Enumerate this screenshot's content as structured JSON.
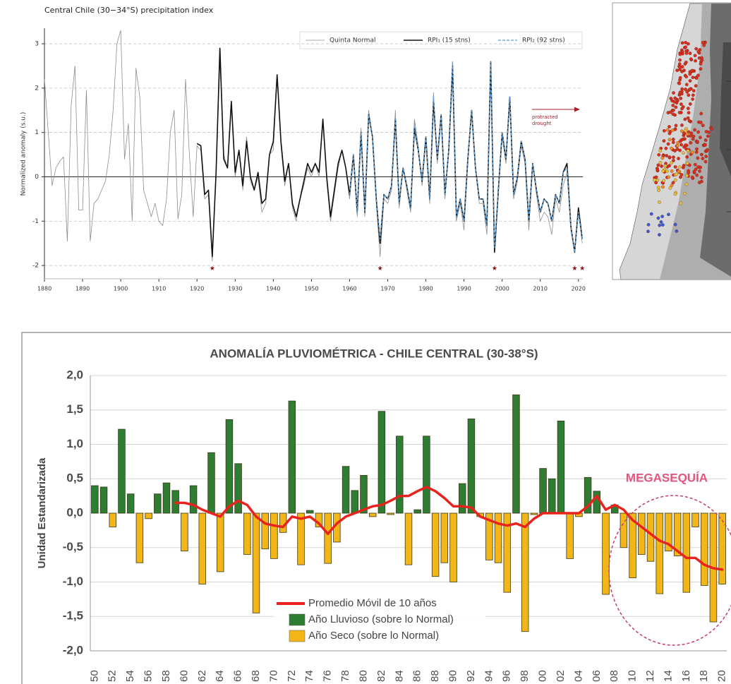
{
  "chart_data": [
    {
      "type": "line",
      "title": "Central Chile (30−34°S) precipitation index",
      "y_label": "Normalized anomaly (s.u.)",
      "x": [
        1880,
        1881,
        1882,
        1883,
        1884,
        1885,
        1886,
        1887,
        1888,
        1889,
        1890,
        1891,
        1892,
        1893,
        1894,
        1895,
        1896,
        1897,
        1898,
        1899,
        1900,
        1901,
        1902,
        1903,
        1904,
        1905,
        1906,
        1907,
        1908,
        1909,
        1910,
        1911,
        1912,
        1913,
        1914,
        1915,
        1916,
        1917,
        1918,
        1919,
        1920,
        1921,
        1922,
        1923,
        1924,
        1925,
        1926,
        1927,
        1928,
        1929,
        1930,
        1931,
        1932,
        1933,
        1934,
        1935,
        1936,
        1937,
        1938,
        1939,
        1940,
        1941,
        1942,
        1943,
        1944,
        1945,
        1946,
        1947,
        1948,
        1949,
        1950,
        1951,
        1952,
        1953,
        1954,
        1955,
        1956,
        1957,
        1958,
        1959,
        1960,
        1961,
        1962,
        1963,
        1964,
        1965,
        1966,
        1967,
        1968,
        1969,
        1970,
        1971,
        1972,
        1973,
        1974,
        1975,
        1976,
        1977,
        1978,
        1979,
        1980,
        1981,
        1982,
        1983,
        1984,
        1985,
        1986,
        1987,
        1988,
        1989,
        1990,
        1991,
        1992,
        1993,
        1994,
        1995,
        1996,
        1997,
        1998,
        1999,
        2000,
        2001,
        2002,
        2003,
        2004,
        2005,
        2006,
        2007,
        2008,
        2009,
        2010,
        2011,
        2012,
        2013,
        2014,
        2015,
        2016,
        2017,
        2018,
        2019,
        2020,
        2021
      ],
      "series": [
        {
          "name": "Quinta Normal",
          "color": "#8c8c8c",
          "linestyle": "solid",
          "values": [
            2.2,
            1.0,
            -0.2,
            0.2,
            0.35,
            0.45,
            -1.45,
            1.6,
            2.5,
            -0.75,
            -0.75,
            1.95,
            -1.45,
            -0.6,
            -0.5,
            -0.3,
            -0.1,
            0.5,
            1.5,
            3.0,
            3.3,
            0.4,
            1.2,
            -1.0,
            2.45,
            1.8,
            -0.3,
            -0.6,
            -0.9,
            -0.6,
            -1.0,
            -1.1,
            -0.5,
            1.0,
            1.5,
            -0.95,
            -0.4,
            2.2,
            0.5,
            -0.9,
            0.7,
            0.6,
            -0.5,
            -0.4,
            -1.9,
            0.2,
            2.6,
            0.5,
            0.2,
            1.7,
            0.0,
            0.6,
            -0.3,
            0.9,
            -0.1,
            -0.3,
            0.0,
            -0.8,
            -0.6,
            0.5,
            0.6,
            2.3,
            0.7,
            -0.2,
            0.3,
            -0.7,
            -1.0,
            -0.5,
            -0.2,
            0.2,
            0.0,
            0.3,
            0.0,
            1.3,
            -0.1,
            -1.0,
            -0.4,
            0.2,
            0.6,
            0.2,
            -0.5,
            0.4,
            -0.9,
            1.1,
            -0.9,
            1.5,
            0.9,
            -0.6,
            -1.8,
            -0.5,
            -0.6,
            -0.3,
            1.5,
            -0.7,
            0.2,
            -0.3,
            -0.8,
            1.3,
            0.7,
            -0.2,
            0.8,
            -0.6,
            1.9,
            0.3,
            1.4,
            -0.5,
            0.7,
            2.6,
            -1.0,
            -0.6,
            -1.2,
            0.3,
            1.5,
            0.2,
            -0.6,
            -0.6,
            -1.3,
            2.5,
            -1.6,
            -0.4,
            0.9,
            0.3,
            1.7,
            -0.5,
            -0.1,
            0.7,
            0.3,
            -1.2,
            0.3,
            -0.4,
            -1.0,
            -0.8,
            -0.9,
            -1.3,
            -0.5,
            -0.8,
            -0.2,
            0.1,
            -1.2,
            -1.7,
            -0.8,
            -1.5
          ]
        },
        {
          "name": "RPI₁ (15 stns)",
          "color": "#111111",
          "linestyle": "solid",
          "values": [
            null,
            null,
            null,
            null,
            null,
            null,
            null,
            null,
            null,
            null,
            null,
            null,
            null,
            null,
            null,
            null,
            null,
            null,
            null,
            null,
            null,
            null,
            null,
            null,
            null,
            null,
            null,
            null,
            null,
            null,
            null,
            null,
            null,
            null,
            null,
            null,
            null,
            null,
            null,
            null,
            0.75,
            0.7,
            -0.4,
            -0.3,
            -1.8,
            0.1,
            2.9,
            0.4,
            0.2,
            1.7,
            0.1,
            0.6,
            -0.2,
            0.8,
            0.0,
            -0.3,
            0.1,
            -0.6,
            -0.5,
            0.5,
            0.8,
            2.3,
            0.8,
            -0.1,
            0.3,
            -0.6,
            -0.9,
            -0.5,
            -0.1,
            0.3,
            0.1,
            0.3,
            0.1,
            1.3,
            0.0,
            -0.9,
            -0.3,
            0.3,
            0.6,
            0.2,
            -0.4,
            0.5,
            -0.8,
            1.0,
            -0.8,
            1.4,
            0.9,
            -0.5,
            -1.5,
            -0.4,
            -0.5,
            -0.2,
            1.3,
            -0.6,
            0.2,
            -0.2,
            -0.7,
            1.1,
            0.6,
            -0.1,
            0.9,
            -0.5,
            1.7,
            0.4,
            1.4,
            -0.4,
            0.6,
            2.5,
            -0.9,
            -0.5,
            -1.0,
            0.4,
            1.5,
            0.2,
            -0.5,
            -0.5,
            -1.1,
            2.6,
            -1.7,
            -0.3,
            1.0,
            0.4,
            1.8,
            -0.4,
            0.0,
            0.8,
            0.4,
            -1.0,
            0.3,
            -0.3,
            -0.8,
            -0.5,
            -0.6,
            -1.0,
            -0.4,
            -0.6,
            0.1,
            0.3,
            -1.1,
            -1.7,
            -0.7,
            -1.4
          ]
        },
        {
          "name": "RPI₂ (92 stns)",
          "color": "#5b9bd5",
          "linestyle": "dashed",
          "values": [
            null,
            null,
            null,
            null,
            null,
            null,
            null,
            null,
            null,
            null,
            null,
            null,
            null,
            null,
            null,
            null,
            null,
            null,
            null,
            null,
            null,
            null,
            null,
            null,
            null,
            null,
            null,
            null,
            null,
            null,
            null,
            null,
            null,
            null,
            null,
            null,
            null,
            null,
            null,
            null,
            null,
            null,
            null,
            null,
            null,
            null,
            null,
            null,
            null,
            null,
            null,
            null,
            null,
            null,
            null,
            null,
            null,
            null,
            null,
            null,
            null,
            null,
            null,
            null,
            null,
            null,
            null,
            null,
            null,
            null,
            null,
            null,
            null,
            null,
            null,
            null,
            null,
            null,
            null,
            null,
            -0.4,
            0.5,
            -0.8,
            1.0,
            -0.8,
            1.4,
            0.9,
            -0.5,
            -1.4,
            -0.4,
            -0.5,
            -0.2,
            1.3,
            -0.6,
            0.2,
            -0.2,
            -0.7,
            1.2,
            0.6,
            -0.1,
            0.9,
            -0.5,
            1.8,
            0.4,
            1.4,
            -0.4,
            0.6,
            2.6,
            -0.9,
            -0.5,
            -1.0,
            0.4,
            1.5,
            0.2,
            -0.5,
            -0.5,
            -1.1,
            2.6,
            -1.6,
            -0.3,
            1.0,
            0.4,
            1.8,
            -0.4,
            0.0,
            0.8,
            0.4,
            -1.0,
            0.3,
            -0.3,
            -0.8,
            -0.5,
            -0.6,
            -1.0,
            -0.4,
            -0.6,
            0.1,
            0.2,
            -1.1,
            -1.7,
            -0.8,
            -1.4
          ]
        }
      ],
      "xlim": [
        1880,
        2023
      ],
      "xticks": [
        1880,
        1890,
        1900,
        1910,
        1920,
        1930,
        1940,
        1950,
        1960,
        1970,
        1980,
        1990,
        2000,
        2010,
        2020
      ],
      "ylim": [
        -2.3,
        3.35
      ],
      "yticks": [
        -2,
        -1,
        0,
        1,
        2,
        3
      ],
      "grid": true,
      "legend": "upper right",
      "drought_years": [
        1924,
        1968,
        1998,
        2019,
        2021
      ],
      "marker_color": "#8b1a1a",
      "annotation": [
        "protracted",
        "drought"
      ],
      "annotation_color": "#a3202b"
    },
    {
      "type": "bar",
      "title": "ANOMALÍA PLUVIOMÉTRICA - CHILE CENTRAL (30-38°S)",
      "y_label": "Unidad  Estandarizada",
      "categories": [
        "50",
        null,
        "52",
        null,
        "54",
        null,
        "56",
        null,
        "58",
        null,
        "60",
        null,
        "62",
        null,
        "64",
        null,
        "66",
        null,
        "68",
        null,
        "70",
        null,
        "72",
        null,
        "74",
        null,
        "76",
        null,
        "78",
        null,
        "80",
        null,
        "82",
        null,
        "84",
        null,
        "86",
        null,
        "88",
        null,
        "90",
        null,
        "92",
        null,
        "94",
        null,
        "96",
        null,
        "98",
        null,
        "00",
        null,
        "02",
        null,
        "04",
        null,
        "06",
        null,
        "08",
        null,
        "10",
        null,
        "12",
        null,
        "14",
        null,
        "16",
        null,
        "18",
        null,
        "20"
      ],
      "series": [
        {
          "name": "Promedio Móvil de 10 años",
          "type": "line",
          "color": "#e8231e",
          "values": [
            null,
            null,
            null,
            null,
            null,
            null,
            null,
            null,
            null,
            0.15,
            0.15,
            0.12,
            0.05,
            0.0,
            -0.05,
            0.1,
            0.18,
            0.12,
            -0.05,
            -0.15,
            -0.18,
            -0.2,
            -0.05,
            -0.08,
            -0.05,
            -0.15,
            -0.3,
            -0.15,
            -0.05,
            0.0,
            0.05,
            0.1,
            0.12,
            0.18,
            0.25,
            0.25,
            0.32,
            0.38,
            0.32,
            0.22,
            0.1,
            0.1,
            0.08,
            -0.05,
            -0.1,
            -0.15,
            -0.18,
            -0.15,
            -0.2,
            -0.08,
            0.0,
            0.0,
            0.0,
            0.0,
            0.0,
            0.1,
            0.25,
            0.05,
            0.12,
            0.05,
            -0.1,
            -0.2,
            -0.3,
            -0.4,
            -0.45,
            -0.55,
            -0.65,
            -0.65,
            -0.75,
            -0.8,
            -0.82
          ]
        },
        {
          "name": "Año Lluvioso (sobre lo Normal)",
          "type": "bar",
          "color": "#2e7d32",
          "values": [
            0.4,
            0.38,
            null,
            1.22,
            0.28,
            null,
            null,
            0.28,
            0.44,
            0.33,
            null,
            0.4,
            null,
            0.88,
            null,
            1.36,
            0.72,
            null,
            null,
            null,
            null,
            null,
            1.63,
            null,
            0.04,
            null,
            null,
            null,
            0.68,
            0.33,
            0.55,
            null,
            1.48,
            null,
            1.12,
            null,
            0.05,
            1.12,
            null,
            null,
            null,
            0.43,
            1.37,
            null,
            null,
            null,
            null,
            1.72,
            null,
            null,
            0.65,
            0.5,
            1.34,
            null,
            null,
            0.52,
            0.32,
            null,
            0.12,
            null,
            null,
            null,
            null,
            null,
            null,
            null,
            null,
            null,
            null,
            null,
            null
          ]
        },
        {
          "name": "Año Seco (sobre lo Normal)",
          "type": "bar",
          "color": "#f2b619",
          "values": [
            null,
            null,
            -0.2,
            null,
            null,
            -0.72,
            -0.08,
            null,
            null,
            null,
            -0.55,
            null,
            -1.03,
            null,
            -0.85,
            null,
            null,
            -0.6,
            -1.45,
            -0.52,
            -0.66,
            -0.28,
            null,
            -0.75,
            null,
            -0.2,
            -0.73,
            -0.42,
            null,
            null,
            null,
            -0.05,
            null,
            -0.02,
            null,
            -0.75,
            null,
            null,
            -0.92,
            -0.72,
            -1.0,
            null,
            null,
            -0.05,
            -0.68,
            -0.72,
            -1.15,
            null,
            -1.72,
            -0.02,
            null,
            null,
            null,
            -0.66,
            -0.05,
            null,
            null,
            -1.18,
            null,
            -0.5,
            -0.94,
            -0.6,
            -0.7,
            -1.17,
            -0.55,
            -0.62,
            -1.15,
            -0.2,
            -1.05,
            -1.58,
            -1.03
          ]
        }
      ],
      "ylim": [
        -2,
        2
      ],
      "yticks": [
        {
          "value": 2,
          "label": "2,0"
        },
        {
          "value": 1.5,
          "label": "1,5"
        },
        {
          "value": 1,
          "label": "1,0"
        },
        {
          "value": 0.5,
          "label": "0,5"
        },
        {
          "value": 0,
          "label": "0,0"
        },
        {
          "value": -0.5,
          "label": "-0,5"
        },
        {
          "value": -1,
          "label": "-1,0"
        },
        {
          "value": -1.5,
          "label": "-1,5"
        },
        {
          "value": -2,
          "label": "-2,0"
        }
      ],
      "grid": true,
      "legend": "lower center",
      "annotation": "MEGASEQUÍA",
      "annotation_color": "#e4557e"
    }
  ]
}
